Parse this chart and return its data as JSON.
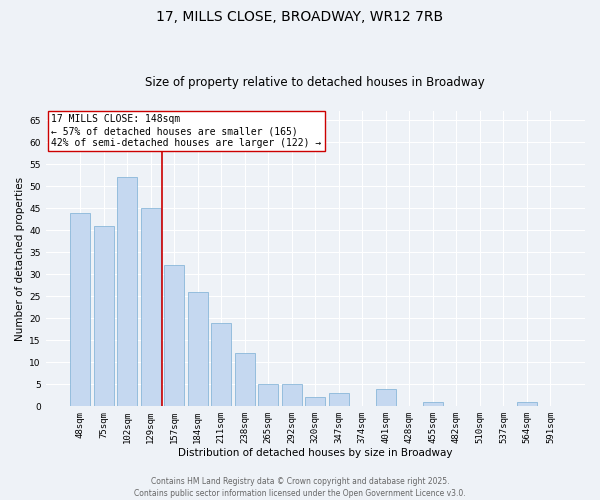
{
  "title": "17, MILLS CLOSE, BROADWAY, WR12 7RB",
  "subtitle": "Size of property relative to detached houses in Broadway",
  "xlabel": "Distribution of detached houses by size in Broadway",
  "ylabel": "Number of detached properties",
  "categories": [
    "48sqm",
    "75sqm",
    "102sqm",
    "129sqm",
    "157sqm",
    "184sqm",
    "211sqm",
    "238sqm",
    "265sqm",
    "292sqm",
    "320sqm",
    "347sqm",
    "374sqm",
    "401sqm",
    "428sqm",
    "455sqm",
    "482sqm",
    "510sqm",
    "537sqm",
    "564sqm",
    "591sqm"
  ],
  "values": [
    44,
    41,
    52,
    45,
    32,
    26,
    19,
    12,
    5,
    5,
    2,
    3,
    0,
    4,
    0,
    1,
    0,
    0,
    0,
    1,
    0
  ],
  "bar_color": "#c5d8f0",
  "bar_edge_color": "#7aaed4",
  "vline_color": "#cc0000",
  "annotation_text": "17 MILLS CLOSE: 148sqm\n← 57% of detached houses are smaller (165)\n42% of semi-detached houses are larger (122) →",
  "annotation_box_color": "#ffffff",
  "annotation_box_edge": "#cc0000",
  "ylim": [
    0,
    67
  ],
  "yticks": [
    0,
    5,
    10,
    15,
    20,
    25,
    30,
    35,
    40,
    45,
    50,
    55,
    60,
    65
  ],
  "background_color": "#eef2f7",
  "grid_color": "#ffffff",
  "footer_line1": "Contains HM Land Registry data © Crown copyright and database right 2025.",
  "footer_line2": "Contains public sector information licensed under the Open Government Licence v3.0.",
  "title_fontsize": 10,
  "subtitle_fontsize": 8.5,
  "axis_label_fontsize": 7.5,
  "tick_fontsize": 6.5,
  "annotation_fontsize": 7,
  "footer_fontsize": 5.5
}
